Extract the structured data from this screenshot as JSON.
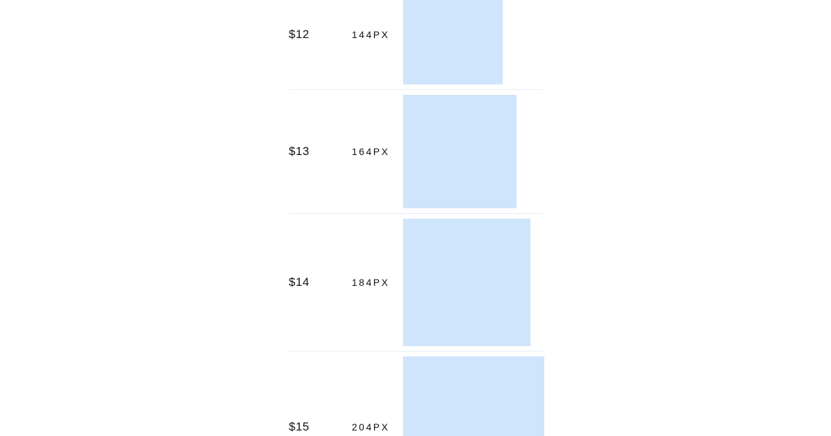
{
  "colors": {
    "swatch": "#cfe5fc",
    "divider": "#e8eef6",
    "text": "#111111"
  },
  "rows": [
    {
      "token": "$12",
      "size_label": "144PX"
    },
    {
      "token": "$13",
      "size_label": "164PX"
    },
    {
      "token": "$14",
      "size_label": "184PX"
    },
    {
      "token": "$15",
      "size_label": "204PX"
    }
  ]
}
